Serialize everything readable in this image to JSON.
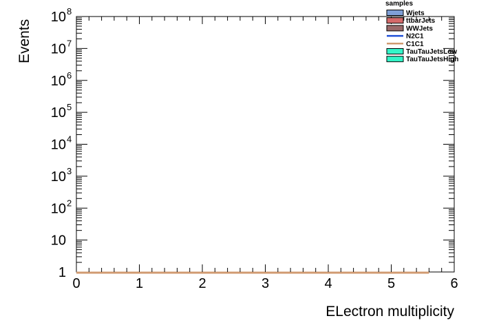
{
  "chart_data": {
    "type": "line",
    "title": "",
    "xlabel": "ELectron multiplicity",
    "ylabel": "Events",
    "xlim": [
      0,
      6
    ],
    "ylim": [
      1,
      100000000
    ],
    "yscale": "log",
    "grid": false,
    "x_ticks": [
      "0",
      "1",
      "2",
      "3",
      "4",
      "5",
      "6"
    ],
    "y_ticks": [
      {
        "value": 1,
        "base": "1",
        "exp": ""
      },
      {
        "value": 10,
        "base": "10",
        "exp": ""
      },
      {
        "value": 100,
        "base": "10",
        "exp": "2"
      },
      {
        "value": 1000,
        "base": "10",
        "exp": "3"
      },
      {
        "value": 10000,
        "base": "10",
        "exp": "4"
      },
      {
        "value": 100000,
        "base": "10",
        "exp": "5"
      },
      {
        "value": 1000000,
        "base": "10",
        "exp": "6"
      },
      {
        "value": 10000000,
        "base": "10",
        "exp": "7"
      },
      {
        "value": 100000000,
        "base": "10",
        "exp": "8"
      }
    ],
    "legend_title": "samples",
    "legend_position": "top-right",
    "legend": [
      {
        "name": "Wjets",
        "kind": "box",
        "color": "#7f9fd6"
      },
      {
        "name": "ttbarJets",
        "kind": "box",
        "color": "#d46a6a"
      },
      {
        "name": "WWJets",
        "kind": "box",
        "color": "#9a6a6a"
      },
      {
        "name": "N2C1",
        "kind": "line",
        "color": "#1f4fd6"
      },
      {
        "name": "C1C1",
        "kind": "line",
        "color": "#d09a70"
      },
      {
        "name": "TauTauJetsLow",
        "kind": "box",
        "color": "#33f5c8"
      },
      {
        "name": "TauTauJetsHigh",
        "kind": "box",
        "color": "#33f5c8"
      }
    ],
    "series": [
      {
        "name": "C1C1",
        "color": "#d09a70",
        "x": [
          0,
          5.6
        ],
        "y": [
          1,
          1
        ]
      }
    ]
  }
}
